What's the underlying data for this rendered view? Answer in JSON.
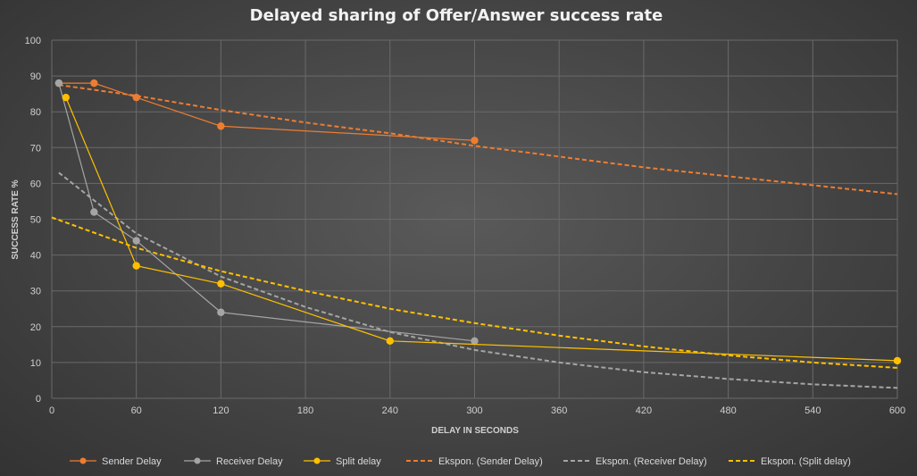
{
  "chart_data": {
    "type": "line",
    "title": "Delayed sharing of Offer/Answer success rate",
    "xlabel": "DELAY IN SECONDS",
    "ylabel": "SUCCESS RATE %",
    "xlim": [
      0,
      600
    ],
    "ylim": [
      0,
      100
    ],
    "xticks": [
      0,
      60,
      120,
      180,
      240,
      300,
      360,
      420,
      480,
      540,
      600
    ],
    "yticks": [
      0,
      10,
      20,
      30,
      40,
      50,
      60,
      70,
      80,
      90,
      100
    ],
    "grid": true,
    "legend_position": "bottom",
    "series": [
      {
        "name": "Sender Delay",
        "style": "solid-markers",
        "color": "#ed7d31",
        "points": [
          [
            5,
            88
          ],
          [
            30,
            88
          ],
          [
            60,
            84
          ],
          [
            120,
            76
          ],
          [
            300,
            72
          ]
        ]
      },
      {
        "name": "Receiver Delay",
        "style": "solid-markers",
        "color": "#a5a5a5",
        "points": [
          [
            5,
            88
          ],
          [
            30,
            52
          ],
          [
            60,
            44
          ],
          [
            120,
            24
          ],
          [
            300,
            16
          ]
        ]
      },
      {
        "name": "Split delay",
        "style": "solid-markers",
        "color": "#ffc000",
        "points": [
          [
            10,
            84
          ],
          [
            60,
            37
          ],
          [
            120,
            32
          ],
          [
            240,
            16
          ],
          [
            600,
            10.5
          ]
        ]
      },
      {
        "name": "Ekspon. (Sender Delay)",
        "style": "dashed",
        "color": "#ed7d31",
        "points": [
          [
            5,
            87.5
          ],
          [
            60,
            84.5
          ],
          [
            120,
            80.5
          ],
          [
            180,
            77
          ],
          [
            240,
            74
          ],
          [
            300,
            70.5
          ],
          [
            360,
            67.5
          ],
          [
            420,
            64.5
          ],
          [
            480,
            62
          ],
          [
            540,
            59.5
          ],
          [
            600,
            57
          ]
        ]
      },
      {
        "name": "Ekspon. (Receiver Delay)",
        "style": "dashed",
        "color": "#a5a5a5",
        "points": [
          [
            5,
            63
          ],
          [
            60,
            46
          ],
          [
            120,
            34
          ],
          [
            180,
            25.5
          ],
          [
            240,
            18.5
          ],
          [
            300,
            13.5
          ],
          [
            360,
            10
          ],
          [
            420,
            7.3
          ],
          [
            480,
            5.4
          ],
          [
            540,
            3.9
          ],
          [
            600,
            2.9
          ]
        ]
      },
      {
        "name": "Ekspon. (Split delay)",
        "style": "dashed",
        "color": "#ffc000",
        "points": [
          [
            0,
            50.5
          ],
          [
            60,
            42
          ],
          [
            120,
            35.5
          ],
          [
            180,
            30
          ],
          [
            240,
            25
          ],
          [
            300,
            21
          ],
          [
            360,
            17.5
          ],
          [
            420,
            14.5
          ],
          [
            480,
            12
          ],
          [
            540,
            10
          ],
          [
            600,
            8.5
          ]
        ]
      }
    ]
  }
}
